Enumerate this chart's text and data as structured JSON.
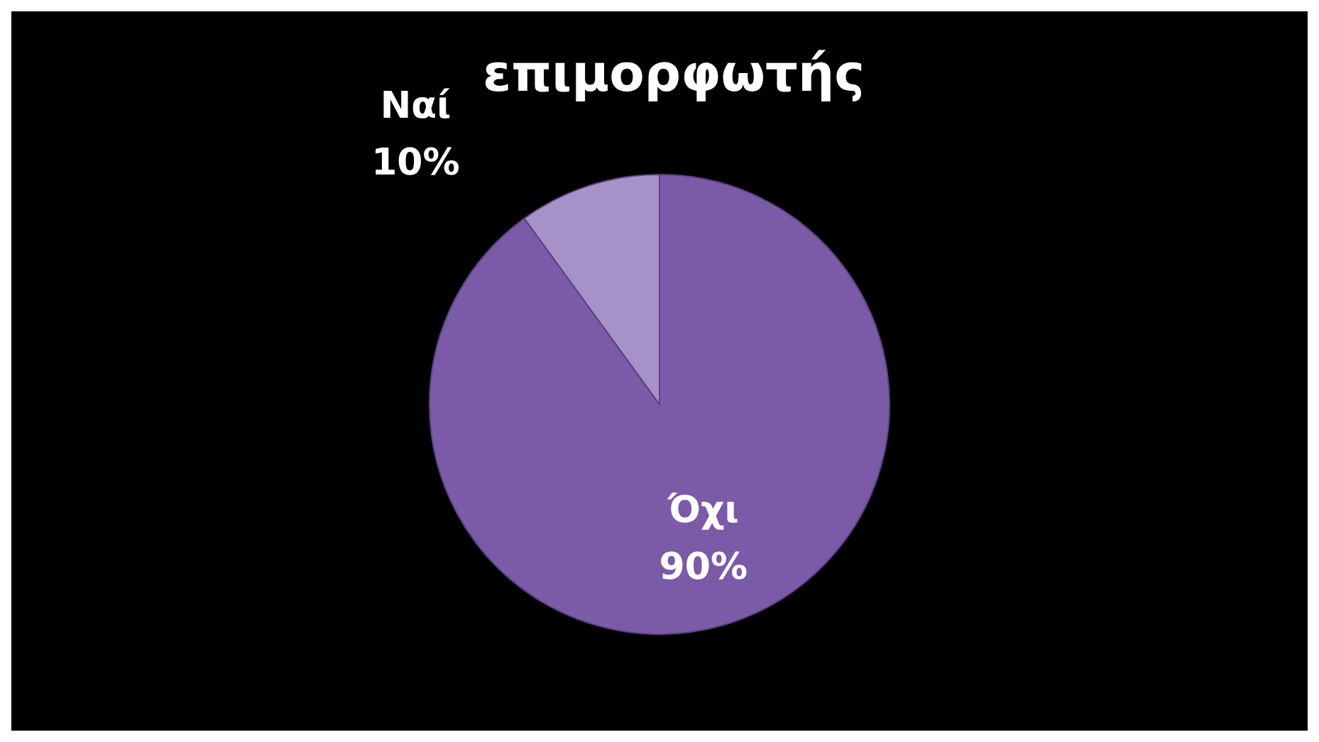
{
  "chart_data": {
    "type": "pie",
    "title": "επιμορφωτής",
    "categories": [
      "Όχι",
      "Ναί"
    ],
    "values": [
      90,
      10
    ],
    "colors": [
      "#7b5aa8",
      "#a691c9"
    ],
    "value_labels": [
      "90%",
      "10%"
    ],
    "legend": false
  }
}
